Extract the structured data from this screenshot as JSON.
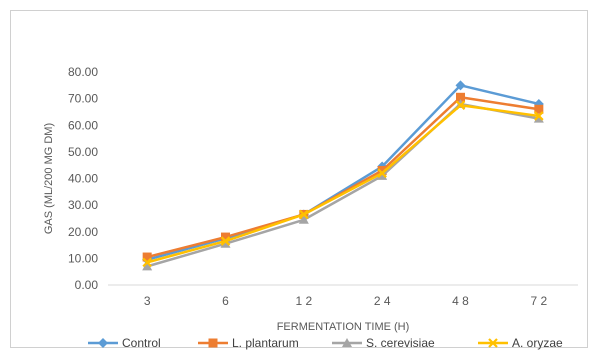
{
  "chart_data": {
    "type": "line",
    "title": "",
    "xlabel": "FERMENTATION TIME (H)",
    "ylabel": "GAS (ML/200 MG DM)",
    "categories": [
      "3",
      "6",
      "1 2",
      "2 4",
      "4 8",
      "7 2"
    ],
    "ylim": [
      0,
      80
    ],
    "yticks": [
      "0.00",
      "10.00",
      "20.00",
      "30.00",
      "40.00",
      "50.00",
      "60.00",
      "70.00",
      "80.00"
    ],
    "grid": false,
    "legend_position": "bottom",
    "series": [
      {
        "name": "Control",
        "color": "#5b9bd5",
        "marker": "diamond",
        "values": [
          9.5,
          17.5,
          26.5,
          44.5,
          75,
          68
        ]
      },
      {
        "name": "L. plantarum",
        "color": "#ed7d31",
        "marker": "square",
        "values": [
          10.5,
          18,
          26.5,
          43,
          70.5,
          66
        ]
      },
      {
        "name": "S. cerevisiae",
        "color": "#a5a5a5",
        "marker": "triangle",
        "values": [
          7,
          15.5,
          24.5,
          41,
          68,
          62.5
        ]
      },
      {
        "name": "A. oryzae",
        "color": "#ffc000",
        "marker": "x",
        "values": [
          8.5,
          16.5,
          26.5,
          42,
          67.5,
          63.5
        ]
      }
    ]
  }
}
